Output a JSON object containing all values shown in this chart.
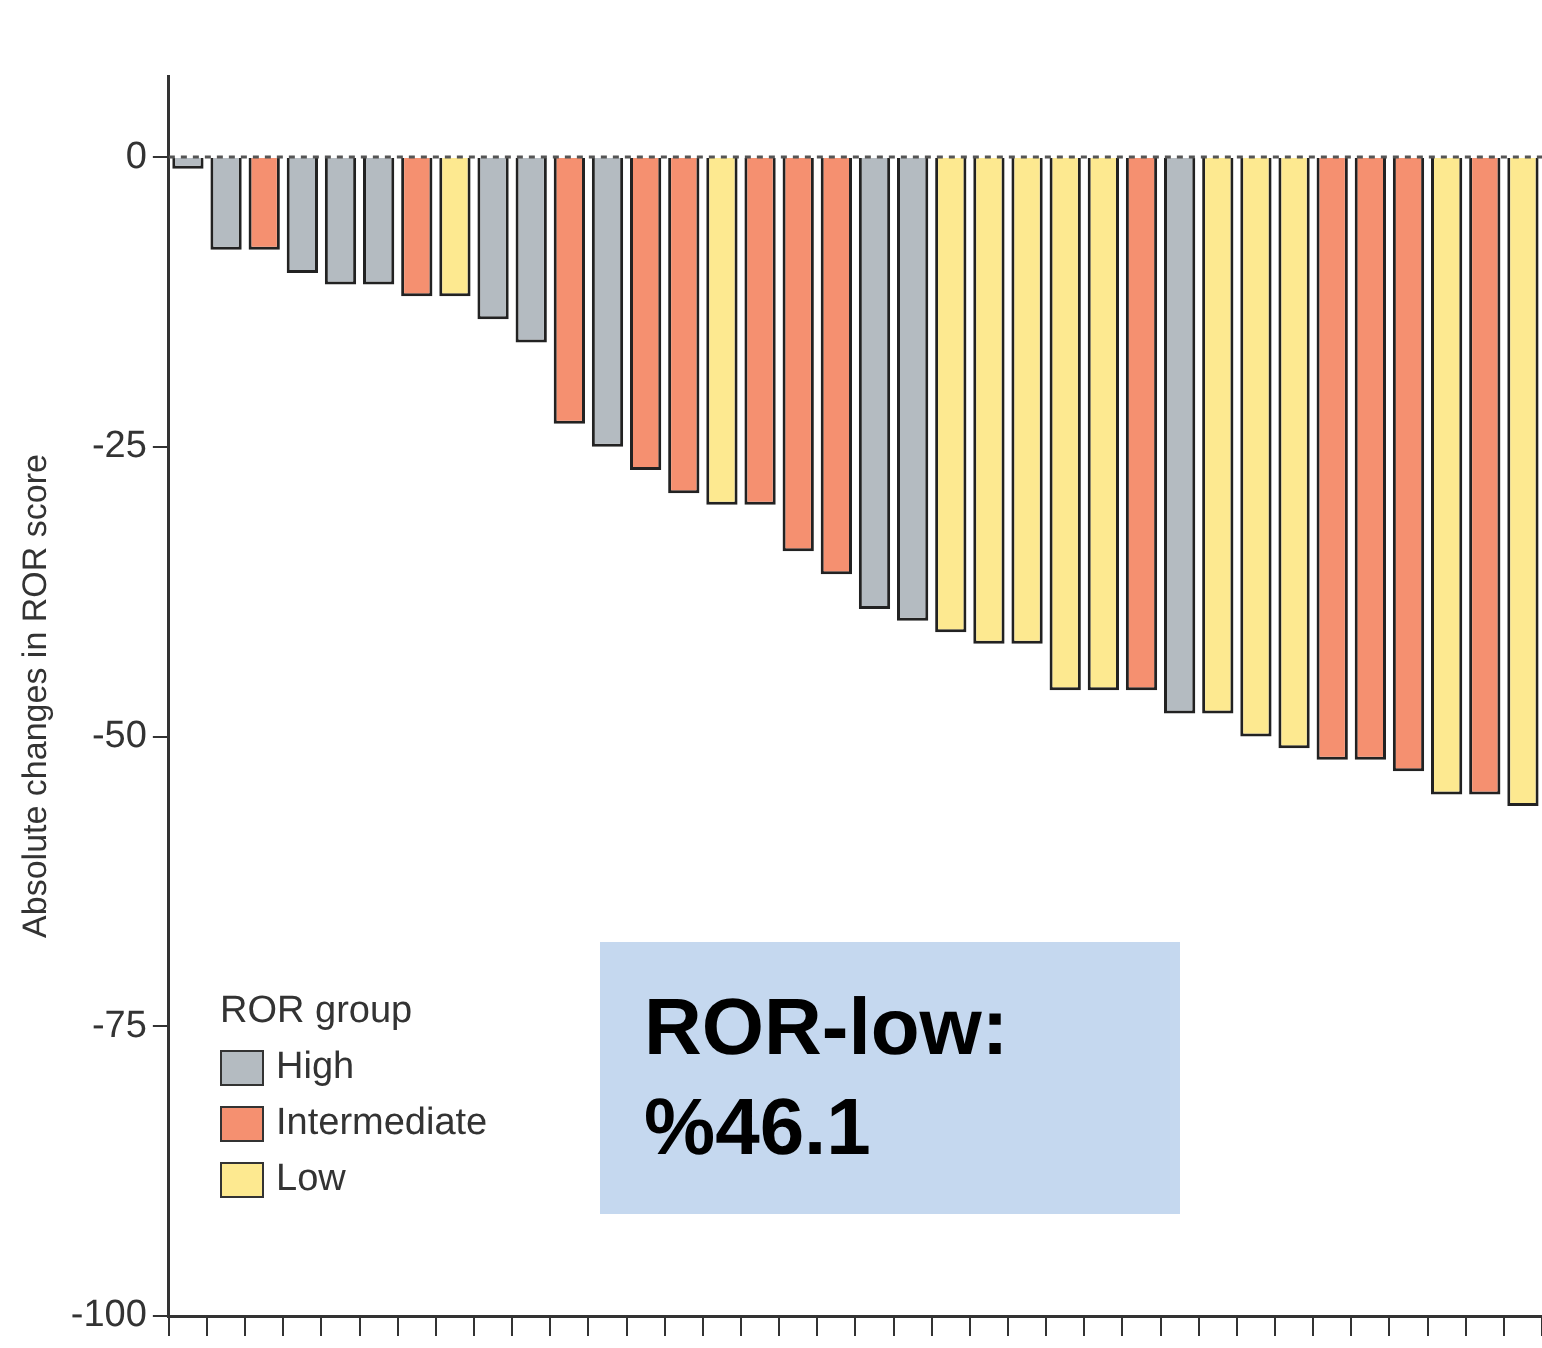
{
  "chart_data": {
    "type": "bar",
    "ylabel": "Absolute changes in ROR score",
    "legend_title": "ROR group",
    "legend": "bottom left",
    "stacked": true,
    "grid": false,
    "tick_labels": "y",
    "categories": [
      null,
      null,
      null,
      null,
      null,
      null,
      null,
      null,
      null,
      null,
      null,
      null,
      null,
      null,
      null,
      null,
      null,
      null,
      null,
      null,
      null,
      null,
      null,
      null,
      null,
      null,
      null,
      null,
      null,
      null,
      null,
      null,
      null,
      null,
      null,
      null
    ],
    "ylim": [
      -100,
      7
    ],
    "yticks": [
      0,
      -25,
      -50,
      -75,
      -100
    ],
    "ref_lines": [
      {
        "axis": "y",
        "value": 0,
        "line_style": "dashed",
        "color": "#555555"
      }
    ],
    "annotations": [
      "ROR-low: %46.1"
    ],
    "series": [
      {
        "name": "High",
        "color": "#b4bbc1",
        "values": [
          -1,
          -8,
          null,
          -10,
          -11,
          -11,
          null,
          null,
          -14,
          -16,
          null,
          -25,
          null,
          null,
          null,
          null,
          null,
          null,
          -39,
          -40,
          null,
          null,
          null,
          null,
          null,
          null,
          -48,
          null,
          null,
          null,
          null,
          null,
          null,
          null,
          null,
          null
        ]
      },
      {
        "name": "Intermediate",
        "color": "#f59070",
        "values": [
          null,
          null,
          -8,
          null,
          null,
          null,
          -12,
          null,
          null,
          null,
          -23,
          null,
          -27,
          -29,
          null,
          -30,
          -34,
          -36,
          null,
          null,
          null,
          null,
          null,
          null,
          null,
          -46,
          null,
          null,
          null,
          null,
          -52,
          -52,
          -53,
          null,
          -55,
          null
        ]
      },
      {
        "name": "Low",
        "color": "#fde990",
        "values": [
          null,
          null,
          null,
          null,
          null,
          null,
          null,
          -12,
          null,
          null,
          null,
          null,
          null,
          null,
          -30,
          null,
          null,
          null,
          null,
          null,
          -41,
          -42,
          -42,
          -46,
          -46,
          null,
          null,
          -48,
          -50,
          -51,
          null,
          null,
          null,
          -55,
          null,
          -56
        ]
      }
    ]
  }
}
